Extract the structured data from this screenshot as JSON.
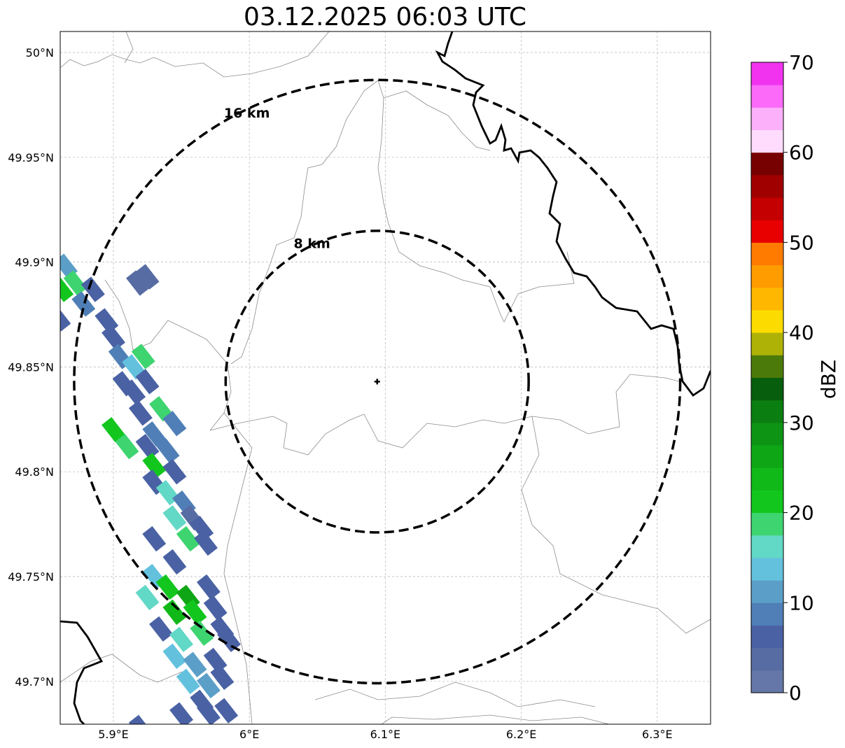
{
  "title": "03.12.2025 06:03 UTC",
  "map": {
    "lon_range": [
      5.86,
      6.34
    ],
    "lat_range": [
      49.68,
      50.01
    ],
    "lon_ticks": [
      {
        "value": 5.9,
        "label": "5.9°E"
      },
      {
        "value": 6.0,
        "label": "6°E"
      },
      {
        "value": 6.1,
        "label": "6.1°E"
      },
      {
        "value": 6.2,
        "label": "6.2°E"
      },
      {
        "value": 6.3,
        "label": "6.3°E"
      }
    ],
    "lat_ticks": [
      {
        "value": 50.0,
        "label": "50°N"
      },
      {
        "value": 49.95,
        "label": "49.95°N"
      },
      {
        "value": 49.9,
        "label": "49.9°N"
      },
      {
        "value": 49.85,
        "label": "49.85°N"
      },
      {
        "value": 49.8,
        "label": "49.8°N"
      },
      {
        "value": 49.75,
        "label": "49.75°N"
      },
      {
        "value": 49.7,
        "label": "49.7°N"
      }
    ],
    "radar_center": {
      "lon": 6.094,
      "lat": 49.843
    },
    "rings": [
      {
        "radius_km": 8,
        "label": "8 km"
      },
      {
        "radius_km": 16,
        "label": "16 km"
      }
    ]
  },
  "colorbar": {
    "label": "dBZ",
    "min": 0,
    "max": 70,
    "ticks": [
      0,
      10,
      20,
      30,
      40,
      50,
      60,
      70
    ],
    "colors": [
      "#6577a8",
      "#576ca2",
      "#4a62a4",
      "#4f7fb6",
      "#5b9fc8",
      "#63c1de",
      "#62d8c6",
      "#3ed470",
      "#12c61e",
      "#10b818",
      "#0fa616",
      "#0e9414",
      "#0b7e12",
      "#075e0d",
      "#4b7a0a",
      "#afb206",
      "#fcdc00",
      "#ffb700",
      "#ff9c00",
      "#ff7b00",
      "#e80000",
      "#c40000",
      "#a00000",
      "#770000",
      "#ffdcfd",
      "#fcb0fa",
      "#fb6af9",
      "#f133f0"
    ]
  },
  "echoes": [
    {
      "lon": 5.865,
      "lat": 49.898,
      "dbz": 12
    },
    {
      "lon": 5.872,
      "lat": 49.89,
      "dbz": 18
    },
    {
      "lon": 5.862,
      "lat": 49.887,
      "dbz": 22
    },
    {
      "lon": 5.878,
      "lat": 49.88,
      "dbz": 8
    },
    {
      "lon": 5.86,
      "lat": 49.873,
      "dbz": 6
    },
    {
      "lon": 5.885,
      "lat": 49.887,
      "dbz": 6
    },
    {
      "lon": 5.895,
      "lat": 49.872,
      "dbz": 6
    },
    {
      "lon": 5.9,
      "lat": 49.864,
      "dbz": 6
    },
    {
      "lon": 5.918,
      "lat": 49.89,
      "dbz": 4
    },
    {
      "lon": 5.925,
      "lat": 49.893,
      "dbz": 4
    },
    {
      "lon": 5.905,
      "lat": 49.855,
      "dbz": 8
    },
    {
      "lon": 5.915,
      "lat": 49.85,
      "dbz": 14
    },
    {
      "lon": 5.922,
      "lat": 49.855,
      "dbz": 18
    },
    {
      "lon": 5.925,
      "lat": 49.843,
      "dbz": 6
    },
    {
      "lon": 5.915,
      "lat": 49.838,
      "dbz": 6
    },
    {
      "lon": 5.908,
      "lat": 49.842,
      "dbz": 6
    },
    {
      "lon": 5.935,
      "lat": 49.83,
      "dbz": 18
    },
    {
      "lon": 5.92,
      "lat": 49.828,
      "dbz": 6
    },
    {
      "lon": 5.945,
      "lat": 49.823,
      "dbz": 8
    },
    {
      "lon": 5.93,
      "lat": 49.818,
      "dbz": 8
    },
    {
      "lon": 5.9,
      "lat": 49.82,
      "dbz": 20
    },
    {
      "lon": 5.91,
      "lat": 49.812,
      "dbz": 18
    },
    {
      "lon": 5.925,
      "lat": 49.812,
      "dbz": 6
    },
    {
      "lon": 5.94,
      "lat": 49.81,
      "dbz": 8
    },
    {
      "lon": 5.93,
      "lat": 49.803,
      "dbz": 22
    },
    {
      "lon": 5.945,
      "lat": 49.8,
      "dbz": 6
    },
    {
      "lon": 5.93,
      "lat": 49.795,
      "dbz": 6
    },
    {
      "lon": 5.94,
      "lat": 49.79,
      "dbz": 16
    },
    {
      "lon": 5.952,
      "lat": 49.785,
      "dbz": 8
    },
    {
      "lon": 5.945,
      "lat": 49.778,
      "dbz": 16
    },
    {
      "lon": 5.958,
      "lat": 49.778,
      "dbz": 4
    },
    {
      "lon": 5.965,
      "lat": 49.773,
      "dbz": 6
    },
    {
      "lon": 5.955,
      "lat": 49.768,
      "dbz": 18
    },
    {
      "lon": 5.968,
      "lat": 49.766,
      "dbz": 6
    },
    {
      "lon": 5.93,
      "lat": 49.768,
      "dbz": 6
    },
    {
      "lon": 5.945,
      "lat": 49.757,
      "dbz": 6
    },
    {
      "lon": 5.93,
      "lat": 49.75,
      "dbz": 14
    },
    {
      "lon": 5.94,
      "lat": 49.745,
      "dbz": 22
    },
    {
      "lon": 5.955,
      "lat": 49.74,
      "dbz": 26
    },
    {
      "lon": 5.97,
      "lat": 49.745,
      "dbz": 6
    },
    {
      "lon": 5.925,
      "lat": 49.74,
      "dbz": 16
    },
    {
      "lon": 5.945,
      "lat": 49.733,
      "dbz": 24
    },
    {
      "lon": 5.96,
      "lat": 49.733,
      "dbz": 20
    },
    {
      "lon": 5.975,
      "lat": 49.735,
      "dbz": 6
    },
    {
      "lon": 5.935,
      "lat": 49.725,
      "dbz": 6
    },
    {
      "lon": 5.95,
      "lat": 49.72,
      "dbz": 16
    },
    {
      "lon": 5.965,
      "lat": 49.723,
      "dbz": 18
    },
    {
      "lon": 5.98,
      "lat": 49.725,
      "dbz": 6
    },
    {
      "lon": 5.985,
      "lat": 49.72,
      "dbz": 6
    },
    {
      "lon": 5.945,
      "lat": 49.712,
      "dbz": 14
    },
    {
      "lon": 5.96,
      "lat": 49.708,
      "dbz": 12
    },
    {
      "lon": 5.975,
      "lat": 49.71,
      "dbz": 6
    },
    {
      "lon": 5.955,
      "lat": 49.7,
      "dbz": 14
    },
    {
      "lon": 5.97,
      "lat": 49.698,
      "dbz": 12
    },
    {
      "lon": 5.98,
      "lat": 49.702,
      "dbz": 6
    },
    {
      "lon": 5.965,
      "lat": 49.69,
      "dbz": 6
    },
    {
      "lon": 5.95,
      "lat": 49.684,
      "dbz": 6
    },
    {
      "lon": 5.97,
      "lat": 49.685,
      "dbz": 6
    },
    {
      "lon": 5.983,
      "lat": 49.686,
      "dbz": 6
    },
    {
      "lon": 5.92,
      "lat": 49.678,
      "dbz": 6
    }
  ]
}
